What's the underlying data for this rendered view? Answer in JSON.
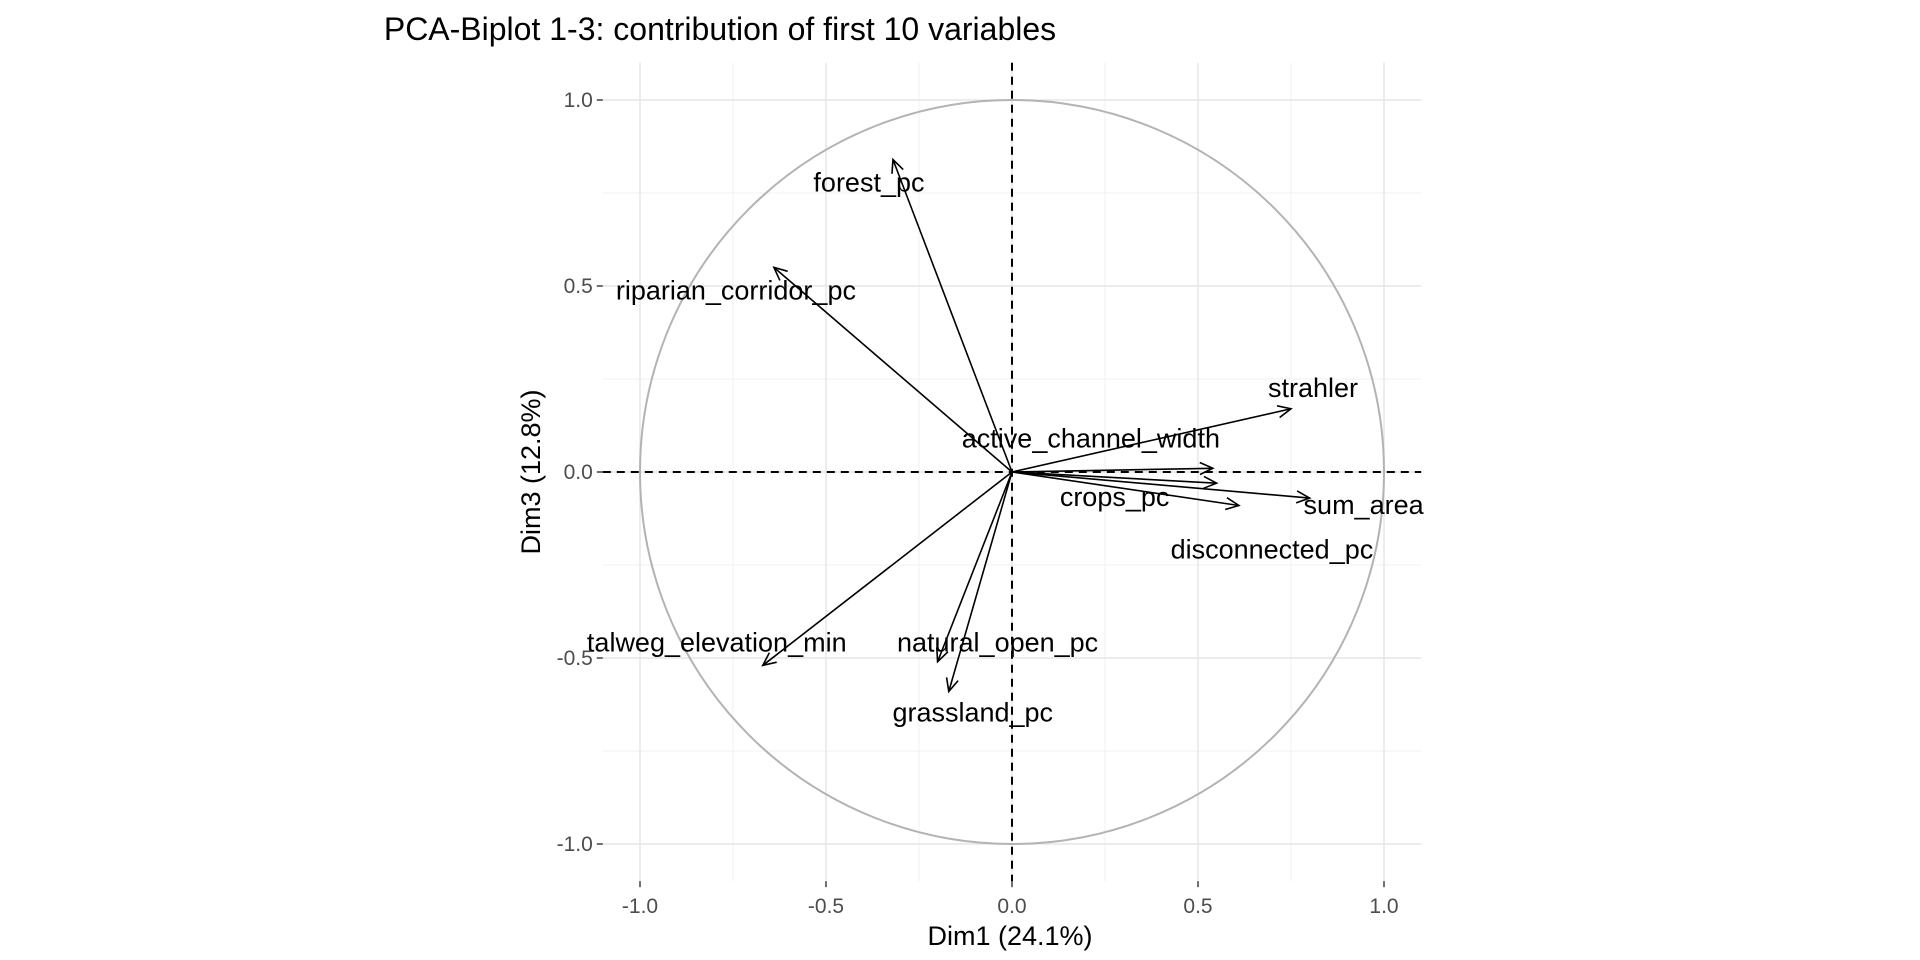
{
  "chart_data": {
    "type": "scatter",
    "subtype": "pca-variable-correlation-circle",
    "title": "PCA-Biplot 1-3: contribution of first 10 variables",
    "xlabel": "Dim1 (24.1%)",
    "ylabel": "Dim3 (12.8%)",
    "xlim": [
      -1.1,
      1.1
    ],
    "ylim": [
      -1.1,
      1.1
    ],
    "x_ticks": [
      -1.0,
      -0.5,
      0.0,
      0.5,
      1.0
    ],
    "y_ticks": [
      -1.0,
      -0.5,
      0.0,
      0.5,
      1.0
    ],
    "x_tick_labels": [
      "-1.0",
      "-0.5",
      "0.0",
      "0.5",
      "1.0"
    ],
    "y_tick_labels": [
      "-1.0",
      "-0.5",
      "0.0",
      "0.5",
      "1.0"
    ],
    "grid": true,
    "unit_circle": true,
    "zero_lines": "dashed",
    "legend": "none",
    "variables": [
      {
        "name": "forest_pc",
        "x": -0.32,
        "y": 0.84
      },
      {
        "name": "riparian_corridor_pc",
        "x": -0.64,
        "y": 0.55
      },
      {
        "name": "strahler",
        "x": 0.75,
        "y": 0.17
      },
      {
        "name": "active_channel_width",
        "x": 0.54,
        "y": 0.01
      },
      {
        "name": "sum_area",
        "x": 0.8,
        "y": -0.07
      },
      {
        "name": "crops_pc",
        "x": 0.55,
        "y": -0.03
      },
      {
        "name": "disconnected_pc",
        "x": 0.61,
        "y": -0.09
      },
      {
        "name": "talweg_elevation_min",
        "x": -0.67,
        "y": -0.52
      },
      {
        "name": "natural_open_pc",
        "x": -0.2,
        "y": -0.51
      },
      {
        "name": "grassland_pc",
        "x": -0.17,
        "y": -0.59
      }
    ]
  }
}
